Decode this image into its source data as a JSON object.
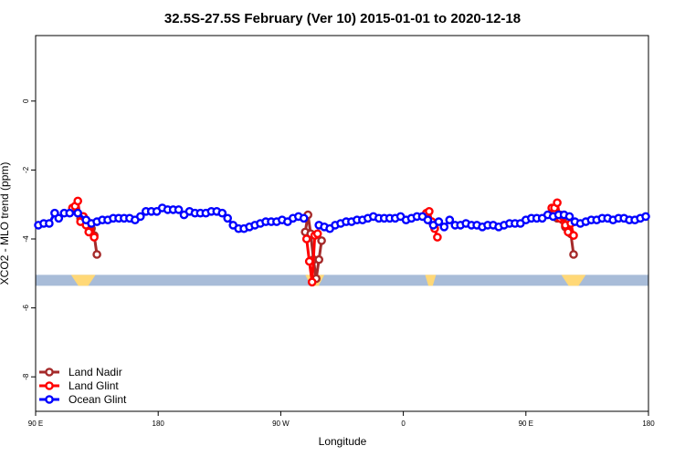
{
  "chart_data": {
    "type": "line",
    "title": "32.5S-27.5S February (Ver 10)   2015-01-01 to 2020-12-18",
    "xlabel": "Longitude",
    "ylabel": "XCO2 - MLO trend (ppm)",
    "xlim": [
      90,
      540
    ],
    "ylim": [
      -9.0,
      1.9
    ],
    "x_ticks": [
      {
        "value": 90,
        "label": "90 E"
      },
      {
        "value": 180,
        "label": "180"
      },
      {
        "value": 270,
        "label": "90 W"
      },
      {
        "value": 360,
        "label": "0"
      },
      {
        "value": 450,
        "label": "90 E"
      },
      {
        "value": 540,
        "label": "180"
      }
    ],
    "y_ticks": [
      {
        "value": 0,
        "label": "0"
      },
      {
        "value": -2,
        "label": "-2"
      },
      {
        "value": -4,
        "label": "-4"
      },
      {
        "value": -6,
        "label": "-6"
      },
      {
        "value": -8,
        "label": "-8"
      }
    ],
    "legend": {
      "position": "bottom-left"
    },
    "land_mask": {
      "y": -5.2,
      "colors": {
        "ocean": "#a8bcd8",
        "land": "#ffd877"
      },
      "land_segments": [
        [
          116,
          134
        ],
        [
          288,
          302
        ],
        [
          376,
          384
        ],
        [
          476,
          494
        ]
      ]
    },
    "series": [
      {
        "name": "Land Nadir",
        "color": "#a52a2a",
        "segments": [
          [
            [
              123,
              -3.4
            ],
            [
              125,
              -3.35
            ],
            [
              127,
              -3.45
            ],
            [
              129,
              -3.65
            ],
            [
              131,
              -3.7
            ],
            [
              133,
              -3.9
            ],
            [
              135,
              -4.45
            ]
          ],
          [
            [
              288,
              -3.8
            ],
            [
              290,
              -3.3
            ],
            [
              292,
              -3.85
            ],
            [
              294,
              -4.6
            ],
            [
              296,
              -5.15
            ],
            [
              298,
              -4.6
            ],
            [
              300,
              -4.05
            ]
          ],
          [
            [
              471,
              -3.25
            ],
            [
              473,
              -3.4
            ],
            [
              475,
              -3.3
            ],
            [
              477,
              -3.45
            ],
            [
              479,
              -3.65
            ],
            [
              481,
              -3.7
            ],
            [
              483,
              -3.85
            ],
            [
              485,
              -4.45
            ]
          ]
        ]
      },
      {
        "name": "Land Glint",
        "color": "#ff0000",
        "segments": [
          [
            [
              117,
              -3.1
            ],
            [
              119,
              -3.05
            ],
            [
              121,
              -2.9
            ],
            [
              123,
              -3.5
            ],
            [
              125,
              -3.35
            ],
            [
              127,
              -3.6
            ],
            [
              129,
              -3.8
            ],
            [
              131,
              -3.55
            ],
            [
              133,
              -3.95
            ]
          ],
          [
            [
              289,
              -4.0
            ],
            [
              291,
              -4.65
            ],
            [
              293,
              -5.25
            ],
            [
              295,
              -3.9
            ],
            [
              297,
              -3.85
            ]
          ],
          [
            [
              377,
              -3.25
            ],
            [
              379,
              -3.2
            ],
            [
              381,
              -3.5
            ],
            [
              383,
              -3.7
            ],
            [
              385,
              -3.95
            ]
          ],
          [
            [
              469,
              -3.1
            ],
            [
              471,
              -3.1
            ],
            [
              473,
              -2.95
            ],
            [
              475,
              -3.4
            ],
            [
              477,
              -3.35
            ],
            [
              479,
              -3.6
            ],
            [
              481,
              -3.8
            ],
            [
              483,
              -3.55
            ],
            [
              485,
              -3.9
            ]
          ]
        ]
      },
      {
        "name": "Ocean Glint",
        "color": "#0000ff",
        "segments": [
          [
            [
              92,
              -3.6
            ],
            [
              96,
              -3.55
            ],
            [
              100,
              -3.55
            ],
            [
              104,
              -3.25
            ],
            [
              107,
              -3.4
            ],
            [
              111,
              -3.25
            ],
            [
              115,
              -3.25
            ],
            [
              121,
              -3.25
            ],
            [
              127,
              -3.45
            ],
            [
              131,
              -3.55
            ],
            [
              135,
              -3.5
            ],
            [
              139,
              -3.45
            ],
            [
              143,
              -3.45
            ],
            [
              147,
              -3.4
            ],
            [
              151,
              -3.4
            ],
            [
              155,
              -3.4
            ],
            [
              159,
              -3.4
            ],
            [
              163,
              -3.45
            ],
            [
              167,
              -3.35
            ],
            [
              171,
              -3.2
            ],
            [
              175,
              -3.2
            ],
            [
              179,
              -3.2
            ],
            [
              183,
              -3.1
            ],
            [
              187,
              -3.15
            ],
            [
              191,
              -3.15
            ],
            [
              195,
              -3.15
            ],
            [
              199,
              -3.3
            ],
            [
              203,
              -3.2
            ],
            [
              207,
              -3.25
            ],
            [
              211,
              -3.25
            ],
            [
              215,
              -3.25
            ],
            [
              219,
              -3.2
            ],
            [
              223,
              -3.2
            ],
            [
              227,
              -3.25
            ],
            [
              231,
              -3.4
            ],
            [
              235,
              -3.6
            ],
            [
              239,
              -3.7
            ],
            [
              243,
              -3.7
            ],
            [
              247,
              -3.65
            ],
            [
              251,
              -3.6
            ],
            [
              255,
              -3.55
            ],
            [
              259,
              -3.5
            ],
            [
              263,
              -3.5
            ],
            [
              267,
              -3.5
            ],
            [
              271,
              -3.45
            ],
            [
              275,
              -3.5
            ],
            [
              279,
              -3.4
            ],
            [
              283,
              -3.35
            ],
            [
              287,
              -3.4
            ]
          ],
          [
            [
              298,
              -3.6
            ],
            [
              302,
              -3.65
            ],
            [
              306,
              -3.7
            ],
            [
              310,
              -3.6
            ],
            [
              314,
              -3.55
            ],
            [
              318,
              -3.5
            ],
            [
              322,
              -3.5
            ],
            [
              326,
              -3.45
            ],
            [
              330,
              -3.45
            ],
            [
              334,
              -3.4
            ],
            [
              338,
              -3.35
            ],
            [
              342,
              -3.4
            ],
            [
              346,
              -3.4
            ],
            [
              350,
              -3.4
            ],
            [
              354,
              -3.4
            ],
            [
              358,
              -3.35
            ],
            [
              362,
              -3.45
            ],
            [
              366,
              -3.4
            ],
            [
              370,
              -3.35
            ],
            [
              374,
              -3.35
            ],
            [
              378,
              -3.45
            ],
            [
              382,
              -3.6
            ],
            [
              386,
              -3.5
            ],
            [
              390,
              -3.65
            ],
            [
              394,
              -3.45
            ],
            [
              398,
              -3.6
            ],
            [
              402,
              -3.6
            ],
            [
              406,
              -3.55
            ],
            [
              410,
              -3.6
            ],
            [
              414,
              -3.6
            ],
            [
              418,
              -3.65
            ],
            [
              422,
              -3.6
            ],
            [
              426,
              -3.6
            ],
            [
              430,
              -3.65
            ],
            [
              434,
              -3.6
            ],
            [
              438,
              -3.55
            ],
            [
              442,
              -3.55
            ],
            [
              446,
              -3.55
            ],
            [
              450,
              -3.45
            ],
            [
              454,
              -3.4
            ],
            [
              458,
              -3.4
            ],
            [
              462,
              -3.4
            ],
            [
              466,
              -3.3
            ],
            [
              470,
              -3.35
            ],
            [
              474,
              -3.3
            ],
            [
              478,
              -3.3
            ],
            [
              482,
              -3.35
            ],
            [
              486,
              -3.5
            ],
            [
              490,
              -3.55
            ],
            [
              494,
              -3.5
            ],
            [
              498,
              -3.45
            ],
            [
              502,
              -3.45
            ],
            [
              506,
              -3.4
            ],
            [
              510,
              -3.4
            ],
            [
              514,
              -3.45
            ],
            [
              518,
              -3.4
            ],
            [
              522,
              -3.4
            ],
            [
              526,
              -3.45
            ],
            [
              530,
              -3.45
            ],
            [
              534,
              -3.4
            ],
            [
              538,
              -3.35
            ]
          ]
        ]
      }
    ]
  }
}
